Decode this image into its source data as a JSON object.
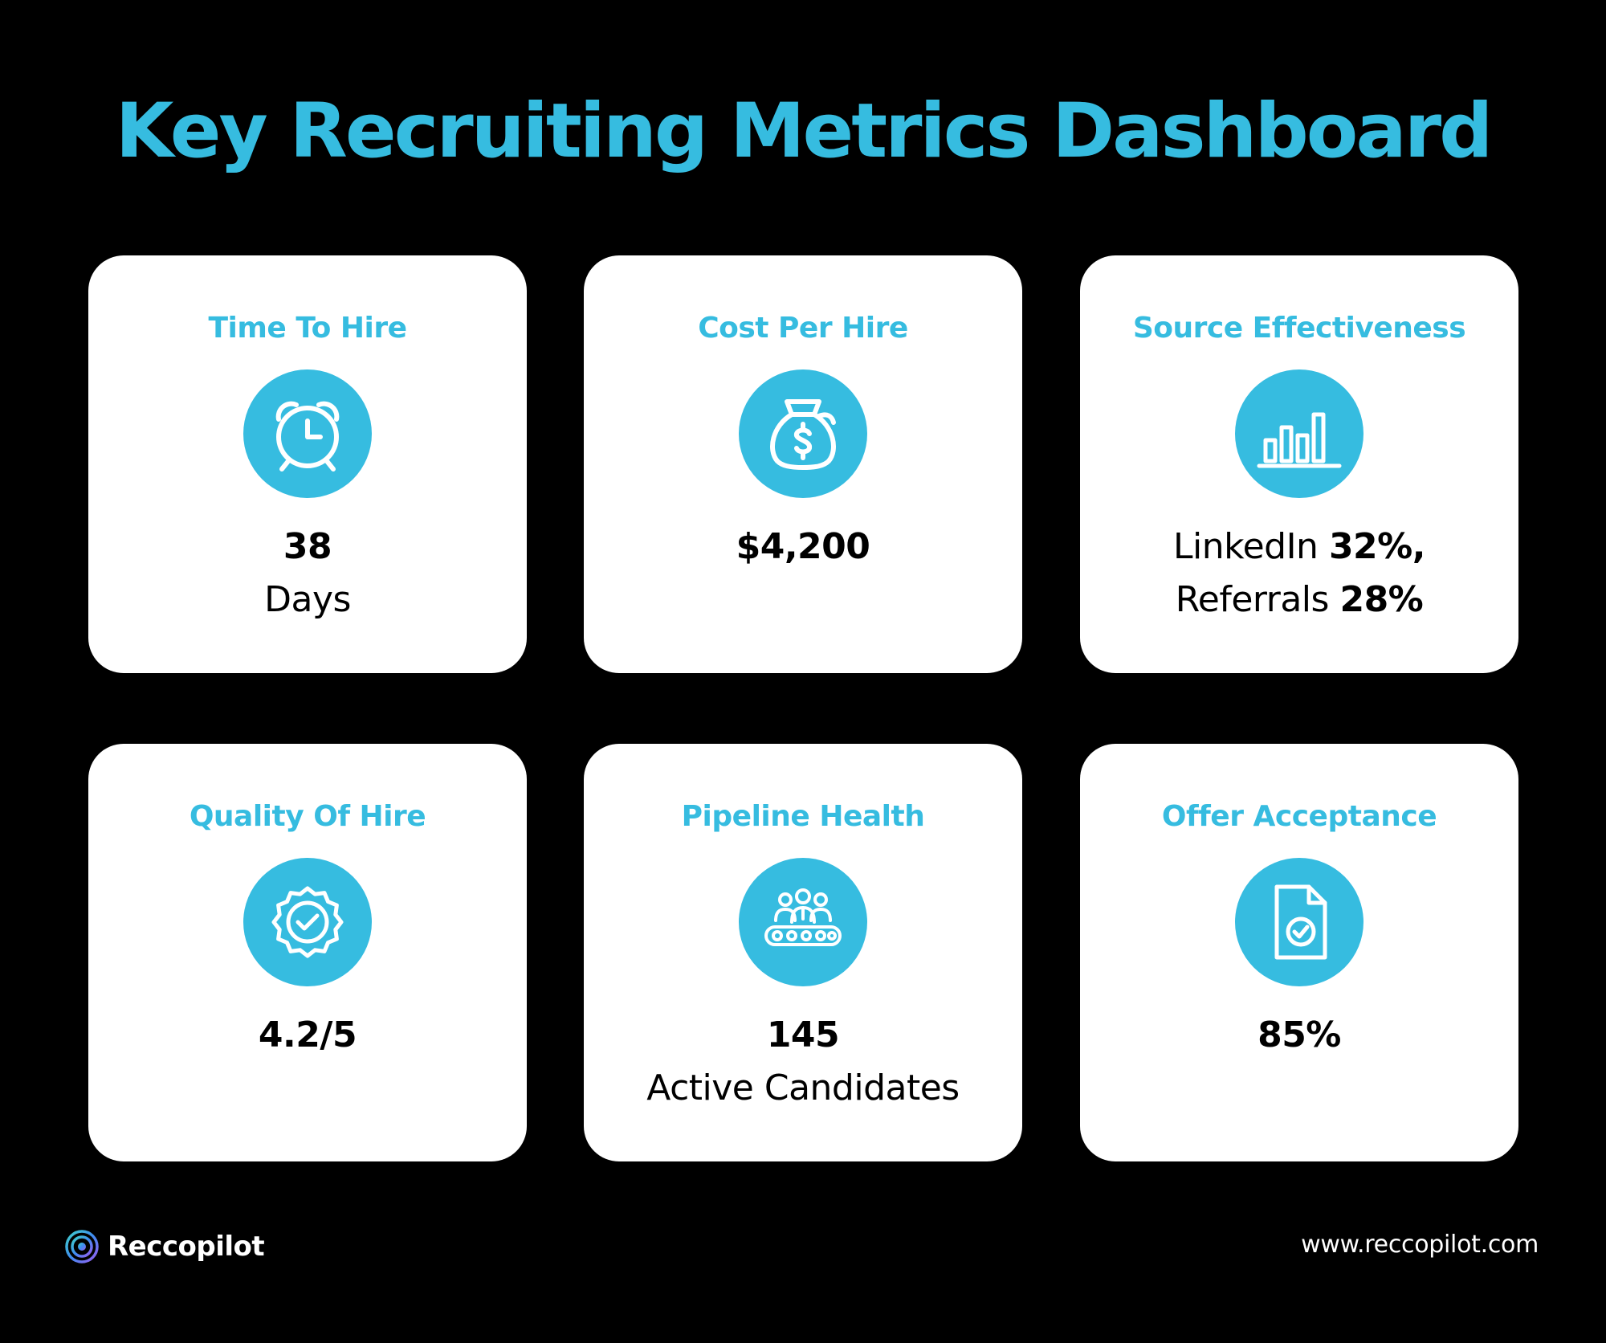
{
  "title": "Key Recruiting Metrics Dashboard",
  "colors": {
    "accent": "#36bce0",
    "background": "#000000",
    "card": "#ffffff"
  },
  "cards": [
    {
      "title": "Time To Hire",
      "icon": "alarm-clock-icon",
      "value_bold": "38",
      "value_sub": "Days"
    },
    {
      "title": "Cost Per Hire",
      "icon": "money-bag-icon",
      "value_bold": "$4,200"
    },
    {
      "title": "Source Effectiveness",
      "icon": "bar-chart-icon",
      "line1_label": "LinkedIn",
      "line1_value": "32%,",
      "line2_label": "Referrals",
      "line2_value": "28%"
    },
    {
      "title": "Quality Of Hire",
      "icon": "badge-check-icon",
      "value_bold": "4.2/5"
    },
    {
      "title": "Pipeline Health",
      "icon": "candidates-conveyor-icon",
      "value_bold": "145",
      "value_sub": "Active Candidates"
    },
    {
      "title": "Offer Acceptance",
      "icon": "document-check-icon",
      "value_bold": "85%"
    }
  ],
  "footer": {
    "brand": "Reccopilot",
    "url": "www.reccopilot.com"
  }
}
